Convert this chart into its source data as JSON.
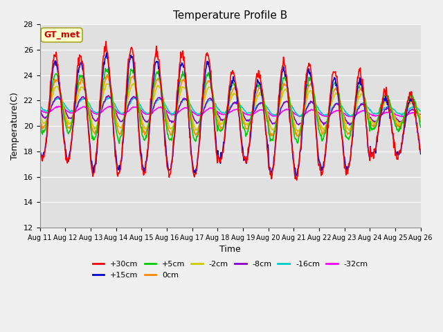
{
  "title": "Temperature Profile B",
  "xlabel": "Time",
  "ylabel": "Temperature(C)",
  "ylim": [
    12,
    28
  ],
  "n_days": 15,
  "x_tick_positions": [
    0,
    1,
    2,
    3,
    4,
    5,
    6,
    7,
    8,
    9,
    10,
    11,
    12,
    13,
    14,
    15
  ],
  "x_tick_labels": [
    "Aug 11",
    "Aug 12",
    "Aug 13",
    "Aug 14",
    "Aug 15",
    "Aug 16",
    "Aug 17",
    "Aug 18",
    "Aug 19",
    "Aug 20",
    "Aug 21",
    "Aug 22",
    "Aug 23",
    "Aug 24",
    "Aug 25",
    "Aug 26"
  ],
  "annotation_text": "GT_met",
  "annotation_color": "#cc0000",
  "annotation_bg": "#ffffcc",
  "annotation_edge": "#999900",
  "series": [
    {
      "label": "+30cm",
      "color": "#ff0000",
      "lw": 1.2
    },
    {
      "label": "+15cm",
      "color": "#0000cc",
      "lw": 1.2
    },
    {
      "label": "+5cm",
      "color": "#00cc00",
      "lw": 1.2
    },
    {
      "label": "0cm",
      "color": "#ff8800",
      "lw": 1.2
    },
    {
      "label": "-2cm",
      "color": "#cccc00",
      "lw": 1.2
    },
    {
      "label": "-8cm",
      "color": "#8800cc",
      "lw": 1.2
    },
    {
      "label": "-16cm",
      "color": "#00cccc",
      "lw": 1.2
    },
    {
      "label": "-32cm",
      "color": "#ff00ff",
      "lw": 1.2
    }
  ],
  "fig_bg": "#f0f0f0",
  "axes_bg": "#e0e0e0",
  "grid_color": "#ffffff",
  "yticks": [
    12,
    14,
    16,
    18,
    20,
    22,
    24,
    26,
    28
  ]
}
